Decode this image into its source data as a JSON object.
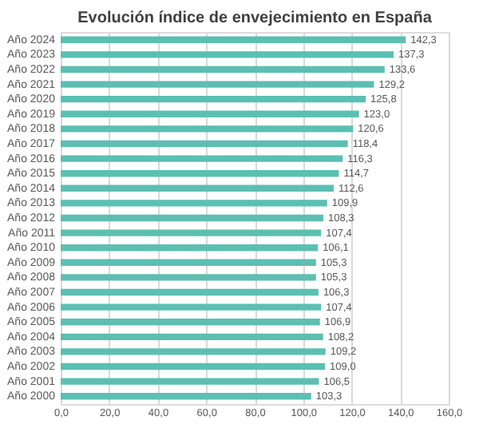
{
  "chart_data": {
    "type": "bar",
    "orientation": "horizontal",
    "title": "Evolución índice de envejecimiento en España",
    "categories": [
      "Año 2024",
      "Año 2023",
      "Año 2022",
      "Año 2021",
      "Año 2020",
      "Año 2019",
      "Año 2018",
      "Año 2017",
      "Año 2016",
      "Año 2015",
      "Año 2014",
      "Año 2013",
      "Año 2012",
      "Año 2011",
      "Año 2010",
      "Año 2009",
      "Año 2008",
      "Año 2007",
      "Año 2006",
      "Año 2005",
      "Año 2004",
      "Año 2003",
      "Año 2002",
      "Año 2001",
      "Año 2000"
    ],
    "values": [
      142.3,
      137.3,
      133.6,
      129.2,
      125.8,
      123.0,
      120.6,
      118.4,
      116.3,
      114.7,
      112.6,
      109.9,
      108.3,
      107.4,
      106.1,
      105.3,
      105.3,
      106.3,
      107.4,
      106.9,
      108.2,
      109.2,
      109.0,
      106.5,
      103.3
    ],
    "value_labels": [
      "142,3",
      "137,3",
      "133,6",
      "129,2",
      "125,8",
      "123,0",
      "120,6",
      "118,4",
      "116,3",
      "114,7",
      "112,6",
      "109,9",
      "108,3",
      "107,4",
      "106,1",
      "105,3",
      "105,3",
      "106,3",
      "107,4",
      "106,9",
      "108,2",
      "109,2",
      "109,0",
      "106,5",
      "103,3"
    ],
    "color": "#5cbfb2",
    "xlim": [
      0,
      160
    ],
    "xticks": [
      {
        "value": 0,
        "label": "0,0"
      },
      {
        "value": 20,
        "label": "20,0"
      },
      {
        "value": 40,
        "label": "40,0"
      },
      {
        "value": 60,
        "label": "60,0"
      },
      {
        "value": 80,
        "label": "80,0"
      },
      {
        "value": 100,
        "label": "100,0"
      },
      {
        "value": 120,
        "label": "120,0"
      },
      {
        "value": 140,
        "label": "140,0"
      },
      {
        "value": 160,
        "label": "160,0"
      }
    ],
    "grid": "x"
  }
}
